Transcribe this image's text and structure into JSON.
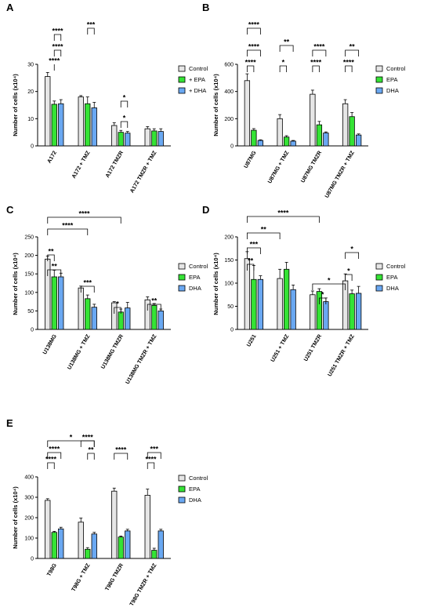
{
  "series_colors": {
    "Control": "#e6e6e6",
    "EPA": "#35e335",
    "DHA": "#6aa8f2"
  },
  "chart_data": [
    {
      "type": "bar",
      "panel": "A",
      "ylabel": "Number of cells (x10⁴)",
      "ylim": [
        0,
        30
      ],
      "yticks": [
        "0",
        "10",
        "20",
        "30"
      ],
      "legend": [
        "Control",
        "+ EPA",
        "+ DHA"
      ],
      "categories": [
        "A172",
        "A172 + TMZ",
        "A172 TMZR",
        "A172 TMZR + TMZ"
      ],
      "series": [
        {
          "name": "Control",
          "values": [
            25.5,
            18.0,
            7.5,
            6.3
          ],
          "errors": [
            1.5,
            0.5,
            1.0,
            0.8
          ]
        },
        {
          "name": "+ EPA",
          "values": [
            15.3,
            15.5,
            5.0,
            5.5
          ],
          "errors": [
            1.2,
            2.5,
            0.7,
            0.8
          ]
        },
        {
          "name": "+ DHA",
          "values": [
            15.5,
            14.0,
            4.7,
            5.3
          ],
          "errors": [
            1.5,
            2.0,
            0.6,
            1.0
          ]
        }
      ],
      "significance": [
        "****",
        "****",
        "****",
        "***",
        "*",
        "*"
      ]
    },
    {
      "type": "bar",
      "panel": "B",
      "ylabel": "Number of cells (x10⁴)",
      "ylim": [
        0,
        600
      ],
      "yticks": [
        "0",
        "200",
        "400",
        "600"
      ],
      "legend": [
        "Control",
        "EPA",
        "DHA"
      ],
      "categories": [
        "U87MG",
        "U87MG + TMZ",
        "U87MG TMZR",
        "U87MG TMZR + TMZ"
      ],
      "series": [
        {
          "name": "Control",
          "values": [
            480,
            200,
            380,
            310
          ],
          "errors": [
            50,
            30,
            30,
            30
          ]
        },
        {
          "name": "EPA",
          "values": [
            115,
            65,
            155,
            215
          ],
          "errors": [
            12,
            10,
            25,
            30
          ]
        },
        {
          "name": "DHA",
          "values": [
            40,
            35,
            95,
            80
          ],
          "errors": [
            5,
            5,
            8,
            8
          ]
        }
      ],
      "significance": [
        "****",
        "****",
        "****",
        "*",
        "**",
        "****",
        "****",
        "****",
        "**"
      ]
    },
    {
      "type": "bar",
      "panel": "C",
      "ylabel": "Number of cells (x10⁴)",
      "ylim": [
        0,
        250
      ],
      "yticks": [
        "0",
        "50",
        "100",
        "150",
        "200",
        "250"
      ],
      "legend": [
        "Control",
        "EPA",
        "DHA"
      ],
      "categories": [
        "U138MG",
        "U138MG + TMZ",
        "U138MG TMZR",
        "U138MG TMZR + TMZ"
      ],
      "series": [
        {
          "name": "Control",
          "values": [
            190,
            112,
            72,
            80
          ],
          "errors": [
            8,
            5,
            3,
            8
          ]
        },
        {
          "name": "EPA",
          "values": [
            142,
            83,
            47,
            65
          ],
          "errors": [
            18,
            10,
            8,
            5
          ]
        },
        {
          "name": "DHA",
          "values": [
            142,
            60,
            58,
            50
          ],
          "errors": [
            10,
            8,
            15,
            5
          ]
        }
      ],
      "significance": [
        "****",
        "****",
        "**",
        "**",
        "***",
        "*",
        "**"
      ]
    },
    {
      "type": "bar",
      "panel": "D",
      "ylabel": "Number of cells (x10⁴)",
      "ylim": [
        0,
        200
      ],
      "yticks": [
        "0",
        "50",
        "100",
        "150",
        "200"
      ],
      "legend": [
        "Control",
        "EPA",
        "DHA"
      ],
      "categories": [
        "U251",
        "U251 + TMZ",
        "U251 TMZR",
        "U251 TMZR + TMZ"
      ],
      "series": [
        {
          "name": "Control",
          "values": [
            153,
            110,
            75,
            105
          ],
          "errors": [
            15,
            20,
            8,
            15
          ]
        },
        {
          "name": "EPA",
          "values": [
            108,
            130,
            82,
            77
          ],
          "errors": [
            30,
            15,
            6,
            8
          ]
        },
        {
          "name": "DHA",
          "values": [
            108,
            86,
            60,
            78
          ],
          "errors": [
            8,
            10,
            8,
            15
          ]
        }
      ],
      "significance": [
        "****",
        "**",
        "***",
        "**",
        "*",
        "*",
        "*",
        "*"
      ]
    },
    {
      "type": "bar",
      "panel": "E",
      "ylabel": "Number of cells (x10⁴)",
      "ylim": [
        0,
        400
      ],
      "yticks": [
        "0",
        "100",
        "200",
        "300",
        "400"
      ],
      "legend": [
        "Control",
        "EPA",
        "DHA"
      ],
      "categories": [
        "T98G",
        "T98G + TMZ",
        "T98G TMZR",
        "T98G TMZR + TMZ"
      ],
      "series": [
        {
          "name": "Control",
          "values": [
            285,
            178,
            330,
            310
          ],
          "errors": [
            8,
            20,
            15,
            30
          ]
        },
        {
          "name": "EPA",
          "values": [
            128,
            45,
            105,
            40
          ],
          "errors": [
            5,
            8,
            5,
            10
          ]
        },
        {
          "name": "DHA",
          "values": [
            145,
            120,
            135,
            135
          ],
          "errors": [
            8,
            8,
            8,
            8
          ]
        }
      ],
      "significance": [
        "****",
        "****",
        "*",
        "****",
        "**",
        "****",
        "****",
        "***"
      ]
    }
  ]
}
